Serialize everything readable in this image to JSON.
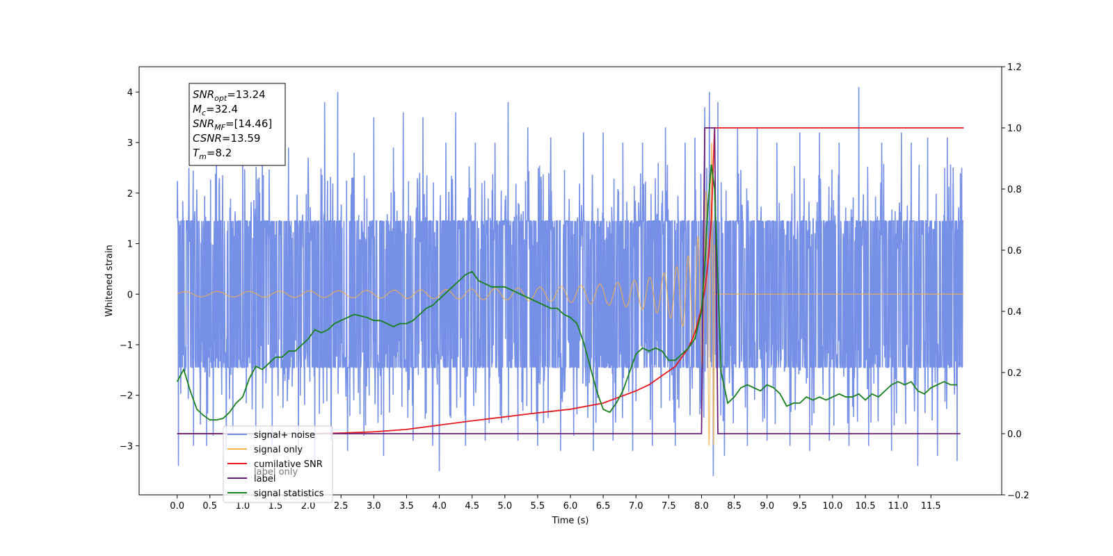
{
  "chart_data": {
    "type": "line",
    "xlabel": "Time (s)",
    "ylabel": "Whitened strain",
    "xlim": [
      -0.58,
      12.58
    ],
    "ylim": [
      -3.97,
      4.5
    ],
    "y2lim": [
      -0.2,
      1.2
    ],
    "grid": false,
    "legend_placement": "lower-left",
    "xticks": [
      "0.0",
      "0.5",
      "1.0",
      "1.5",
      "2.0",
      "2.5",
      "3.0",
      "3.5",
      "4.0",
      "4.5",
      "5.0",
      "5.5",
      "6.0",
      "6.5",
      "7.0",
      "7.5",
      "8.0",
      "8.5",
      "9.0",
      "9.5",
      "10.0",
      "10.5",
      "11.0",
      "11.5"
    ],
    "yticks_left": [
      "−3",
      "−2",
      "−1",
      "0",
      "1",
      "2",
      "3",
      "4"
    ],
    "yticks_right": [
      "−0.2",
      "0.0",
      "0.2",
      "0.4",
      "0.6",
      "0.8",
      "1.0",
      "1.2"
    ],
    "annotation": {
      "lines": [
        {
          "base": "SNR",
          "sub": "opt",
          "value": "=13.24"
        },
        {
          "base": "M",
          "sub": "c",
          "value": "=32.4"
        },
        {
          "base": "SNR",
          "sub": "MF",
          "value": "=[14.46]"
        },
        {
          "base": "CSNR",
          "sub": "",
          "value": "=13.59"
        },
        {
          "base": "T",
          "sub": "m",
          "value": "=8.2"
        }
      ]
    },
    "series": [
      {
        "name": "signal+ noise",
        "axis": "left",
        "color": "#7590e6",
        "sample_rate": 200,
        "envelope": {
          "upper": 1.45,
          "lower": -1.45
        },
        "spikes": [
          {
            "x": 0.0,
            "y": 1.5
          },
          {
            "x": 0.02,
            "y": -3.4
          },
          {
            "x": 0.18,
            "y": 2.5
          },
          {
            "x": 0.25,
            "y": -3.0
          },
          {
            "x": 0.45,
            "y": -3.0
          },
          {
            "x": 0.55,
            "y": -2.8
          },
          {
            "x": 0.6,
            "y": 3.1
          },
          {
            "x": 0.75,
            "y": -3.1
          },
          {
            "x": 0.85,
            "y": -2.7
          },
          {
            "x": 1.0,
            "y": 2.6
          },
          {
            "x": 1.2,
            "y": -2.9
          },
          {
            "x": 1.3,
            "y": 3.2
          },
          {
            "x": 1.45,
            "y": -3.0
          },
          {
            "x": 1.7,
            "y": 2.9
          },
          {
            "x": 1.85,
            "y": -3.0
          },
          {
            "x": 2.0,
            "y": 2.7
          },
          {
            "x": 2.1,
            "y": -3.3
          },
          {
            "x": 2.25,
            "y": 3.8
          },
          {
            "x": 2.35,
            "y": -2.9
          },
          {
            "x": 2.45,
            "y": 4.0
          },
          {
            "x": 2.6,
            "y": -3.1
          },
          {
            "x": 2.7,
            "y": 2.8
          },
          {
            "x": 2.85,
            "y": -2.8
          },
          {
            "x": 3.0,
            "y": 3.5
          },
          {
            "x": 3.15,
            "y": -3.2
          },
          {
            "x": 3.3,
            "y": 2.9
          },
          {
            "x": 3.45,
            "y": 3.6
          },
          {
            "x": 3.6,
            "y": -2.9
          },
          {
            "x": 3.75,
            "y": 3.5
          },
          {
            "x": 3.9,
            "y": -3.0
          },
          {
            "x": 4.0,
            "y": -3.5
          },
          {
            "x": 4.1,
            "y": 3.0
          },
          {
            "x": 4.25,
            "y": 3.6
          },
          {
            "x": 4.4,
            "y": -3.0
          },
          {
            "x": 4.55,
            "y": 3.0
          },
          {
            "x": 4.7,
            "y": -2.9
          },
          {
            "x": 4.85,
            "y": 3.0
          },
          {
            "x": 5.05,
            "y": 3.8
          },
          {
            "x": 5.2,
            "y": -2.9
          },
          {
            "x": 5.35,
            "y": 3.3
          },
          {
            "x": 5.5,
            "y": -3.0
          },
          {
            "x": 5.7,
            "y": 3.1
          },
          {
            "x": 5.85,
            "y": -3.1
          },
          {
            "x": 6.05,
            "y": -2.8
          },
          {
            "x": 6.2,
            "y": 3.2
          },
          {
            "x": 6.35,
            "y": -3.1
          },
          {
            "x": 6.5,
            "y": 3.2
          },
          {
            "x": 6.65,
            "y": -2.9
          },
          {
            "x": 6.8,
            "y": 3.0
          },
          {
            "x": 6.95,
            "y": -3.1
          },
          {
            "x": 7.1,
            "y": 3.0
          },
          {
            "x": 7.25,
            "y": -3.0
          },
          {
            "x": 7.45,
            "y": 3.3
          },
          {
            "x": 7.6,
            "y": -3.0
          },
          {
            "x": 7.75,
            "y": 3.0
          },
          {
            "x": 7.9,
            "y": 3.1
          },
          {
            "x": 8.05,
            "y": 3.7
          },
          {
            "x": 8.12,
            "y": 4.0
          },
          {
            "x": 8.18,
            "y": -3.6
          },
          {
            "x": 8.25,
            "y": 3.8
          },
          {
            "x": 8.35,
            "y": -3.2
          },
          {
            "x": 8.55,
            "y": 3.3
          },
          {
            "x": 8.7,
            "y": -3.0
          },
          {
            "x": 8.85,
            "y": 3.3
          },
          {
            "x": 9.0,
            "y": -2.9
          },
          {
            "x": 9.15,
            "y": 3.0
          },
          {
            "x": 9.35,
            "y": -3.0
          },
          {
            "x": 9.5,
            "y": 3.2
          },
          {
            "x": 9.65,
            "y": -3.1
          },
          {
            "x": 9.8,
            "y": 3.2
          },
          {
            "x": 9.95,
            "y": -2.9
          },
          {
            "x": 10.1,
            "y": 3.0
          },
          {
            "x": 10.25,
            "y": -3.0
          },
          {
            "x": 10.4,
            "y": 4.1
          },
          {
            "x": 10.55,
            "y": -3.0
          },
          {
            "x": 10.75,
            "y": 3.0
          },
          {
            "x": 10.9,
            "y": -3.1
          },
          {
            "x": 11.05,
            "y": 3.2
          },
          {
            "x": 11.2,
            "y": 3.0
          },
          {
            "x": 11.3,
            "y": -3.4
          },
          {
            "x": 11.45,
            "y": 3.1
          },
          {
            "x": 11.6,
            "y": -3.2
          },
          {
            "x": 11.75,
            "y": 3.1
          },
          {
            "x": 11.9,
            "y": -3.3
          },
          {
            "x": 11.97,
            "y": 2.5
          }
        ]
      },
      {
        "name": "signal only",
        "axis": "left",
        "color": "#f5b14a",
        "chirp": {
          "start": 0.0,
          "merger": 8.2,
          "end": 12.0,
          "end_amp": 0.05,
          "peak_amp": 3.0,
          "start_freq": 2.0
        }
      },
      {
        "name": "cumilative SNR",
        "axis": "right",
        "color": "#e8171c",
        "x": [
          0.0,
          0.5,
          1.0,
          1.5,
          2.0,
          2.5,
          3.0,
          3.5,
          4.0,
          4.5,
          5.0,
          5.5,
          6.0,
          6.5,
          7.0,
          7.2,
          7.4,
          7.6,
          7.8,
          7.9,
          8.0,
          8.05,
          8.1,
          8.15,
          8.2,
          8.3,
          12.0
        ],
        "y": [
          0.0,
          0.0,
          0.0,
          0.0,
          0.0,
          0.002,
          0.006,
          0.014,
          0.028,
          0.042,
          0.055,
          0.068,
          0.08,
          0.1,
          0.14,
          0.16,
          0.19,
          0.22,
          0.28,
          0.33,
          0.41,
          0.47,
          0.56,
          0.7,
          1.0,
          1.0,
          1.0
        ]
      },
      {
        "name": "label",
        "axis": "right",
        "color": "#6a1e7a",
        "x": [
          0.0,
          8.0,
          8.05,
          8.2,
          8.25,
          11.95
        ],
        "y": [
          0.0,
          0.0,
          1.0,
          1.0,
          0.0,
          0.0
        ]
      },
      {
        "name": "signal statistics",
        "axis": "right",
        "color": "#18801a",
        "x": [
          0.0,
          0.1,
          0.2,
          0.3,
          0.4,
          0.5,
          0.6,
          0.7,
          0.8,
          0.9,
          1.0,
          1.1,
          1.2,
          1.3,
          1.4,
          1.5,
          1.6,
          1.7,
          1.8,
          1.9,
          2.0,
          2.1,
          2.2,
          2.3,
          2.4,
          2.5,
          2.6,
          2.7,
          2.8,
          2.9,
          3.0,
          3.1,
          3.2,
          3.3,
          3.4,
          3.5,
          3.6,
          3.7,
          3.8,
          3.9,
          4.0,
          4.1,
          4.2,
          4.3,
          4.4,
          4.5,
          4.6,
          4.7,
          4.8,
          4.9,
          5.0,
          5.1,
          5.2,
          5.3,
          5.4,
          5.5,
          5.6,
          5.7,
          5.8,
          5.9,
          6.0,
          6.1,
          6.2,
          6.3,
          6.4,
          6.5,
          6.6,
          6.7,
          6.8,
          6.9,
          7.0,
          7.1,
          7.2,
          7.3,
          7.4,
          7.5,
          7.6,
          7.7,
          7.8,
          7.9,
          8.0,
          8.05,
          8.1,
          8.15,
          8.2,
          8.3,
          8.4,
          8.5,
          8.6,
          8.7,
          8.8,
          8.9,
          9.0,
          9.1,
          9.2,
          9.3,
          9.4,
          9.5,
          9.6,
          9.7,
          9.8,
          9.9,
          10.0,
          10.1,
          10.2,
          10.3,
          10.4,
          10.5,
          10.6,
          10.7,
          10.8,
          10.9,
          11.0,
          11.1,
          11.2,
          11.3,
          11.4,
          11.5,
          11.6,
          11.7,
          11.8,
          11.9
        ],
        "y": [
          0.17,
          0.21,
          0.14,
          0.08,
          0.06,
          0.045,
          0.045,
          0.05,
          0.07,
          0.1,
          0.12,
          0.18,
          0.22,
          0.21,
          0.23,
          0.25,
          0.25,
          0.27,
          0.27,
          0.29,
          0.31,
          0.34,
          0.33,
          0.34,
          0.36,
          0.37,
          0.38,
          0.39,
          0.385,
          0.38,
          0.37,
          0.37,
          0.36,
          0.35,
          0.36,
          0.36,
          0.37,
          0.39,
          0.41,
          0.42,
          0.44,
          0.46,
          0.48,
          0.5,
          0.52,
          0.53,
          0.5,
          0.49,
          0.48,
          0.48,
          0.48,
          0.47,
          0.46,
          0.45,
          0.44,
          0.43,
          0.42,
          0.41,
          0.41,
          0.39,
          0.38,
          0.36,
          0.3,
          0.22,
          0.14,
          0.08,
          0.07,
          0.1,
          0.14,
          0.2,
          0.26,
          0.28,
          0.27,
          0.28,
          0.27,
          0.24,
          0.24,
          0.26,
          0.28,
          0.31,
          0.4,
          0.55,
          0.75,
          0.88,
          0.8,
          0.2,
          0.1,
          0.12,
          0.15,
          0.16,
          0.15,
          0.14,
          0.16,
          0.15,
          0.13,
          0.09,
          0.1,
          0.1,
          0.12,
          0.11,
          0.12,
          0.11,
          0.12,
          0.13,
          0.12,
          0.12,
          0.13,
          0.11,
          0.13,
          0.12,
          0.14,
          0.16,
          0.17,
          0.16,
          0.17,
          0.14,
          0.13,
          0.15,
          0.16,
          0.17,
          0.16,
          0.16
        ]
      }
    ],
    "legend": [
      "signal+ noise",
      "signal only",
      "cumilative SNR",
      "label",
      "signal statistics"
    ],
    "legend_hidden_text": [
      "signal only",
      "label only"
    ]
  }
}
